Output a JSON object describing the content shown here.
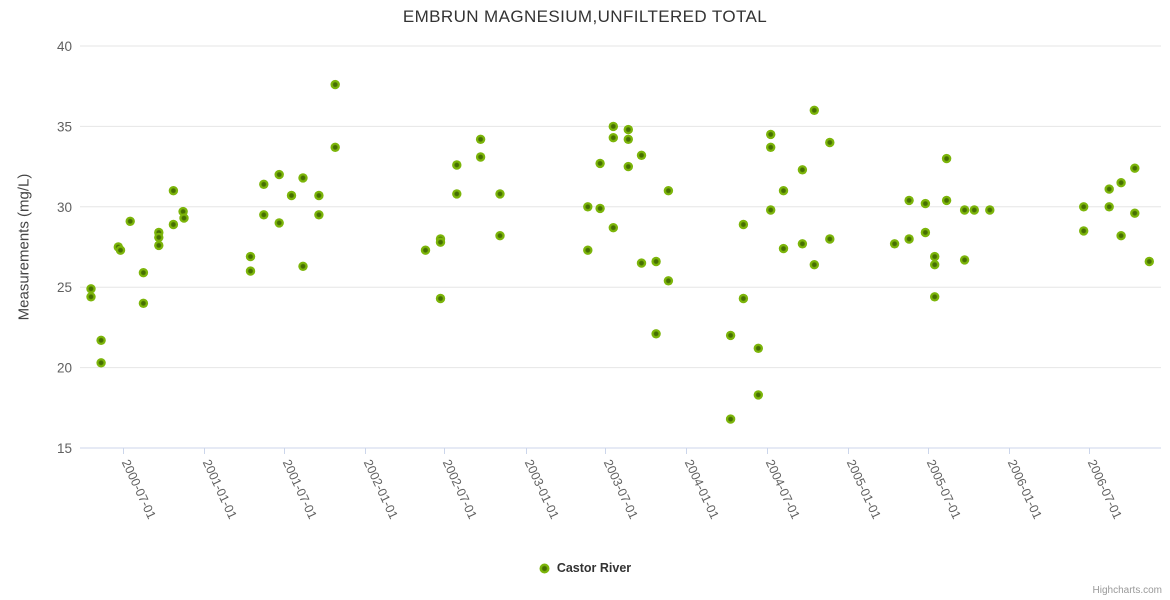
{
  "title": "EMBRUN MAGNESIUM,UNFILTERED TOTAL",
  "watermark": "Highcharts.com",
  "legend": {
    "series_label": "Castor River"
  },
  "y_axis": {
    "title": "Measurements (mg/L)",
    "ticks": [
      15,
      20,
      25,
      30,
      35,
      40
    ]
  },
  "x_axis": {
    "tick_labels": [
      "2000-07-01",
      "2001-01-01",
      "2001-07-01",
      "2002-01-01",
      "2002-07-01",
      "2003-01-01",
      "2003-07-01",
      "2004-01-01",
      "2004-07-01",
      "2005-01-01",
      "2005-07-01",
      "2006-01-01",
      "2006-07-01"
    ]
  },
  "colors": {
    "point_outer": "#7cb50a",
    "point_inner": "#466f02",
    "grid_line": "#e6e6e6",
    "axis_line": "#ccd6eb",
    "title_text": "#333333",
    "axis_label": "#606060",
    "legend_text": "#333333",
    "watermark_text": "#999999"
  },
  "chart_data": {
    "type": "scatter",
    "title": "EMBRUN MAGNESIUM,UNFILTERED TOTAL",
    "xlabel": "",
    "ylabel": "Measurements (mg/L)",
    "ylim": [
      15,
      40
    ],
    "x_ticks": [
      "2000-07-01",
      "2001-01-01",
      "2001-07-01",
      "2002-01-01",
      "2002-07-01",
      "2003-01-01",
      "2003-07-01",
      "2004-01-01",
      "2004-07-01",
      "2005-01-01",
      "2005-07-01",
      "2006-01-01",
      "2006-07-01"
    ],
    "grid": true,
    "legend_position": "bottom-center",
    "series": [
      {
        "name": "Castor River",
        "color": "#7cb50a",
        "points": [
          [
            "2000-04-20",
            24.9
          ],
          [
            "2000-04-20",
            24.4
          ],
          [
            "2000-05-13",
            21.7
          ],
          [
            "2000-05-13",
            20.3
          ],
          [
            "2000-06-21",
            27.5
          ],
          [
            "2000-06-26",
            27.3
          ],
          [
            "2000-07-18",
            29.1
          ],
          [
            "2000-08-17",
            25.9
          ],
          [
            "2000-08-17",
            24.0
          ],
          [
            "2000-09-21",
            28.4
          ],
          [
            "2000-09-21",
            28.1
          ],
          [
            "2000-09-21",
            27.6
          ],
          [
            "2000-10-24",
            31.0
          ],
          [
            "2000-10-24",
            28.9
          ],
          [
            "2000-11-15",
            29.7
          ],
          [
            "2000-11-17",
            29.3
          ],
          [
            "2001-04-17",
            26.9
          ],
          [
            "2001-04-17",
            26.0
          ],
          [
            "2001-05-17",
            31.4
          ],
          [
            "2001-05-17",
            29.5
          ],
          [
            "2001-06-21",
            32.0
          ],
          [
            "2001-06-21",
            29.0
          ],
          [
            "2001-07-19",
            30.7
          ],
          [
            "2001-08-14",
            31.8
          ],
          [
            "2001-08-14",
            26.3
          ],
          [
            "2001-09-19",
            30.7
          ],
          [
            "2001-09-19",
            29.5
          ],
          [
            "2001-10-26",
            37.6
          ],
          [
            "2001-10-26",
            33.7
          ],
          [
            "2002-05-19",
            27.3
          ],
          [
            "2002-06-22",
            28.0
          ],
          [
            "2002-06-22",
            27.8
          ],
          [
            "2002-06-22",
            24.3
          ],
          [
            "2002-07-29",
            32.6
          ],
          [
            "2002-07-29",
            30.8
          ],
          [
            "2002-09-21",
            34.2
          ],
          [
            "2002-09-21",
            33.1
          ],
          [
            "2002-11-04",
            30.8
          ],
          [
            "2002-11-04",
            28.2
          ],
          [
            "2003-05-22",
            30.0
          ],
          [
            "2003-05-22",
            27.3
          ],
          [
            "2003-06-19",
            32.7
          ],
          [
            "2003-06-19",
            29.9
          ],
          [
            "2003-07-19",
            35.0
          ],
          [
            "2003-07-19",
            34.3
          ],
          [
            "2003-07-19",
            28.7
          ],
          [
            "2003-08-22",
            34.8
          ],
          [
            "2003-08-22",
            34.2
          ],
          [
            "2003-08-22",
            32.5
          ],
          [
            "2003-09-21",
            33.2
          ],
          [
            "2003-09-21",
            26.5
          ],
          [
            "2003-10-24",
            26.6
          ],
          [
            "2003-10-24",
            22.1
          ],
          [
            "2003-11-21",
            31.0
          ],
          [
            "2003-11-21",
            25.4
          ],
          [
            "2004-04-10",
            22.0
          ],
          [
            "2004-04-10",
            16.8
          ],
          [
            "2004-05-09",
            28.9
          ],
          [
            "2004-05-09",
            24.3
          ],
          [
            "2004-06-12",
            21.2
          ],
          [
            "2004-06-12",
            18.3
          ],
          [
            "2004-07-10",
            34.5
          ],
          [
            "2004-07-10",
            33.7
          ],
          [
            "2004-07-10",
            29.8
          ],
          [
            "2004-08-08",
            31.0
          ],
          [
            "2004-08-08",
            27.4
          ],
          [
            "2004-09-20",
            32.3
          ],
          [
            "2004-09-20",
            27.7
          ],
          [
            "2004-10-17",
            36.0
          ],
          [
            "2004-10-17",
            26.4
          ],
          [
            "2004-11-21",
            34.0
          ],
          [
            "2004-11-21",
            28.0
          ],
          [
            "2005-04-17",
            27.7
          ],
          [
            "2005-05-20",
            30.4
          ],
          [
            "2005-05-20",
            28.0
          ],
          [
            "2005-06-26",
            30.2
          ],
          [
            "2005-06-26",
            28.4
          ],
          [
            "2005-07-17",
            26.9
          ],
          [
            "2005-07-17",
            26.4
          ],
          [
            "2005-07-17",
            24.4
          ],
          [
            "2005-08-13",
            33.0
          ],
          [
            "2005-08-13",
            30.4
          ],
          [
            "2005-09-23",
            29.8
          ],
          [
            "2005-09-23",
            26.7
          ],
          [
            "2005-10-15",
            29.8
          ],
          [
            "2005-11-19",
            29.8
          ],
          [
            "2006-06-20",
            30.0
          ],
          [
            "2006-06-20",
            28.5
          ],
          [
            "2006-08-17",
            31.1
          ],
          [
            "2006-08-17",
            30.0
          ],
          [
            "2006-09-13",
            31.5
          ],
          [
            "2006-09-13",
            28.2
          ],
          [
            "2006-10-14",
            32.4
          ],
          [
            "2006-10-14",
            29.6
          ],
          [
            "2006-11-16",
            26.6
          ]
        ]
      }
    ]
  }
}
